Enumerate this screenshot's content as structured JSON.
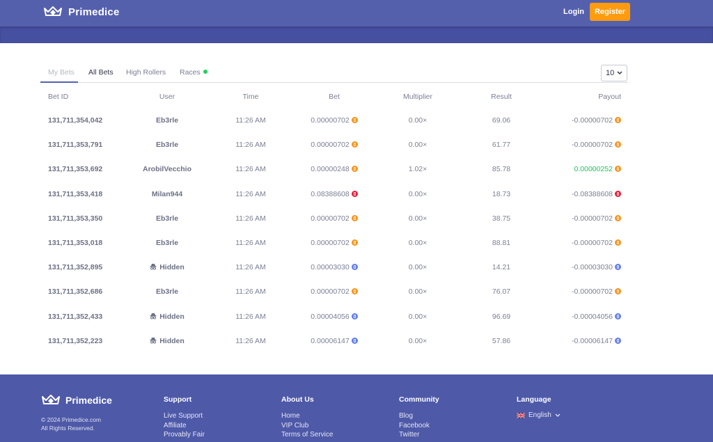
{
  "header": {
    "brand": "Primedice",
    "login_label": "Login",
    "register_label": "Register"
  },
  "tabs": [
    {
      "label": "My Bets",
      "state": "disabled"
    },
    {
      "label": "All Bets",
      "state": "active"
    },
    {
      "label": "High Rollers",
      "state": "normal"
    },
    {
      "label": "Races",
      "state": "normal"
    }
  ],
  "count_select": {
    "value": "10"
  },
  "table": {
    "headers": [
      "Bet ID",
      "User",
      "Time",
      "Bet",
      "Multiplier",
      "Result",
      "Payout"
    ],
    "rows": [
      {
        "id": "131,711,354,042",
        "user": "Eb3rle",
        "time": "11:26 AM",
        "bet": "0.00000702",
        "mult": "0.00×",
        "result": "69.06",
        "payout": "-0.00000702",
        "coin": "btc",
        "hidden": false,
        "win": false
      },
      {
        "id": "131,711,353,791",
        "user": "Eb3rle",
        "time": "11:26 AM",
        "bet": "0.00000702",
        "mult": "0.00×",
        "result": "61.77",
        "payout": "-0.00000702",
        "coin": "btc",
        "hidden": false,
        "win": false
      },
      {
        "id": "131,711,353,692",
        "user": "ArobilVecchio",
        "time": "11:26 AM",
        "bet": "0.00000248",
        "mult": "1.02×",
        "result": "85.78",
        "payout": "0.00000252",
        "coin": "btc",
        "hidden": false,
        "win": true
      },
      {
        "id": "131,711,353,418",
        "user": "Milan944",
        "time": "11:26 AM",
        "bet": "0.08388608",
        "mult": "0.00×",
        "result": "18.73",
        "payout": "-0.08388608",
        "coin": "trx",
        "hidden": false,
        "win": false
      },
      {
        "id": "131,711,353,350",
        "user": "Eb3rle",
        "time": "11:26 AM",
        "bet": "0.00000702",
        "mult": "0.00×",
        "result": "38.75",
        "payout": "-0.00000702",
        "coin": "btc",
        "hidden": false,
        "win": false
      },
      {
        "id": "131,711,353,018",
        "user": "Eb3rle",
        "time": "11:26 AM",
        "bet": "0.00000702",
        "mult": "0.00×",
        "result": "88.81",
        "payout": "-0.00000702",
        "coin": "btc",
        "hidden": false,
        "win": false
      },
      {
        "id": "131,711,352,895",
        "user": "Hidden",
        "time": "11:26 AM",
        "bet": "0.00003030",
        "mult": "0.00×",
        "result": "14.21",
        "payout": "-0.00003030",
        "coin": "eth",
        "hidden": true,
        "win": false
      },
      {
        "id": "131,711,352,686",
        "user": "Eb3rle",
        "time": "11:26 AM",
        "bet": "0.00000702",
        "mult": "0.00×",
        "result": "76.07",
        "payout": "-0.00000702",
        "coin": "btc",
        "hidden": false,
        "win": false
      },
      {
        "id": "131,711,352,433",
        "user": "Hidden",
        "time": "11:26 AM",
        "bet": "0.00004056",
        "mult": "0.00×",
        "result": "96.69",
        "payout": "-0.00004056",
        "coin": "eth",
        "hidden": true,
        "win": false
      },
      {
        "id": "131,711,352,223",
        "user": "Hidden",
        "time": "11:26 AM",
        "bet": "0.00006147",
        "mult": "0.00×",
        "result": "57.86",
        "payout": "-0.00006147",
        "coin": "eth",
        "hidden": true,
        "win": false
      }
    ]
  },
  "coin_colors": {
    "btc": "#f7931a",
    "trx": "#e0203a",
    "eth": "#627eea"
  },
  "colors": {
    "accent": "#5560ad",
    "brand_orange": "#ff9b0f",
    "win_green": "#1dc45a",
    "race_dot": "#1fd15d"
  },
  "footer": {
    "brand": "Primedice",
    "copyright": "© 2024 Primedice.com",
    "rights": "All Rights Reserved.",
    "columns": [
      {
        "title": "Support",
        "links": [
          "Live Support",
          "Affiliate",
          "Provably Fair"
        ]
      },
      {
        "title": "About Us",
        "links": [
          "Home",
          "VIP Club",
          "Terms of Service"
        ]
      },
      {
        "title": "Community",
        "links": [
          "Blog",
          "Facebook",
          "Twitter"
        ]
      }
    ],
    "language": {
      "title": "Language",
      "value": "English"
    }
  }
}
